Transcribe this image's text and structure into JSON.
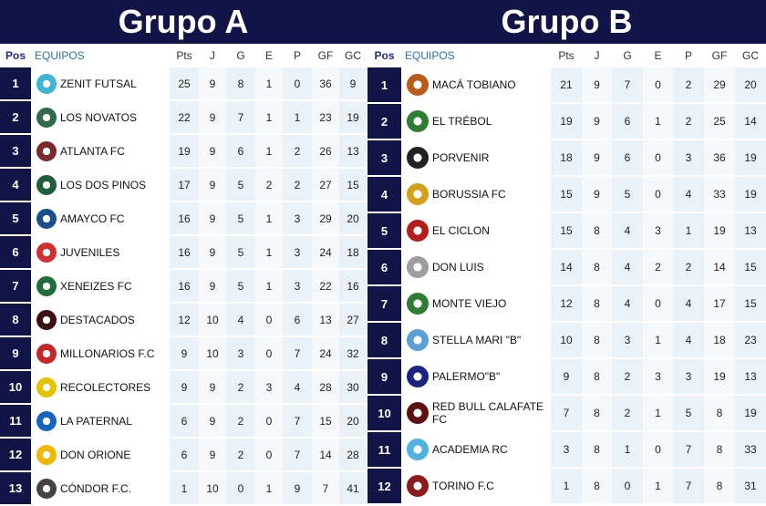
{
  "group_a": {
    "title": "Grupo A",
    "headers": {
      "pos": "Pos",
      "team": "EQUIPOS",
      "pts": "Pts",
      "j": "J",
      "g": "G",
      "e": "E",
      "p": "P",
      "gf": "GF",
      "gc": "GC"
    },
    "rows": [
      {
        "pos": "1",
        "team": "ZENIT FUTSAL",
        "pts": "25",
        "j": "9",
        "g": "8",
        "e": "1",
        "p": "0",
        "gf": "36",
        "gc": "9",
        "color": "#3fb5d6"
      },
      {
        "pos": "2",
        "team": "LOS NOVATOS",
        "pts": "22",
        "j": "9",
        "g": "7",
        "e": "1",
        "p": "1",
        "gf": "23",
        "gc": "19",
        "color": "#2f6b4a"
      },
      {
        "pos": "3",
        "team": "ATLANTA FC",
        "pts": "19",
        "j": "9",
        "g": "6",
        "e": "1",
        "p": "2",
        "gf": "26",
        "gc": "13",
        "color": "#7a2b2b"
      },
      {
        "pos": "4",
        "team": "LOS DOS PINOS",
        "pts": "17",
        "j": "9",
        "g": "5",
        "e": "2",
        "p": "2",
        "gf": "27",
        "gc": "15",
        "color": "#1f5f3a"
      },
      {
        "pos": "5",
        "team": "AMAYCO FC",
        "pts": "16",
        "j": "9",
        "g": "5",
        "e": "1",
        "p": "3",
        "gf": "29",
        "gc": "20",
        "color": "#1b4f8c"
      },
      {
        "pos": "6",
        "team": "JUVENILES",
        "pts": "16",
        "j": "9",
        "g": "5",
        "e": "1",
        "p": "3",
        "gf": "24",
        "gc": "18",
        "color": "#d32f2f"
      },
      {
        "pos": "7",
        "team": "XENEIZES FC",
        "pts": "16",
        "j": "9",
        "g": "5",
        "e": "1",
        "p": "3",
        "gf": "22",
        "gc": "16",
        "color": "#1e6d3a"
      },
      {
        "pos": "8",
        "team": "DESTACADOS",
        "pts": "12",
        "j": "10",
        "g": "4",
        "e": "0",
        "p": "6",
        "gf": "13",
        "gc": "27",
        "color": "#3a1010"
      },
      {
        "pos": "9",
        "team": "MILLONARIOS F.C",
        "pts": "9",
        "j": "10",
        "g": "3",
        "e": "0",
        "p": "7",
        "gf": "24",
        "gc": "32",
        "color": "#c62828"
      },
      {
        "pos": "10",
        "team": "RECOLECTORES",
        "pts": "9",
        "j": "9",
        "g": "2",
        "e": "3",
        "p": "4",
        "gf": "28",
        "gc": "30",
        "color": "#e6c200"
      },
      {
        "pos": "11",
        "team": "LA PATERNAL",
        "pts": "6",
        "j": "9",
        "g": "2",
        "e": "0",
        "p": "7",
        "gf": "15",
        "gc": "20",
        "color": "#1565c0"
      },
      {
        "pos": "12",
        "team": "DON ORIONE",
        "pts": "6",
        "j": "9",
        "g": "2",
        "e": "0",
        "p": "7",
        "gf": "14",
        "gc": "28",
        "color": "#f2b705"
      },
      {
        "pos": "13",
        "team": "CÓNDOR F.C.",
        "pts": "1",
        "j": "10",
        "g": "0",
        "e": "1",
        "p": "9",
        "gf": "7",
        "gc": "41",
        "color": "#444444"
      }
    ]
  },
  "group_b": {
    "title": "Grupo B",
    "headers": {
      "pos": "Pos",
      "team": "EQUIPOS",
      "pts": "Pts",
      "j": "J",
      "g": "G",
      "e": "E",
      "p": "P",
      "gf": "GF",
      "gc": "GC"
    },
    "rows": [
      {
        "pos": "1",
        "team": "MACÁ TOBIANO",
        "pts": "21",
        "j": "9",
        "g": "7",
        "e": "0",
        "p": "2",
        "gf": "29",
        "gc": "20",
        "color": "#b85c1a"
      },
      {
        "pos": "2",
        "team": "EL TRÉBOL",
        "pts": "19",
        "j": "9",
        "g": "6",
        "e": "1",
        "p": "2",
        "gf": "25",
        "gc": "14",
        "color": "#2e7d32"
      },
      {
        "pos": "3",
        "team": "PORVENIR",
        "pts": "18",
        "j": "9",
        "g": "6",
        "e": "0",
        "p": "3",
        "gf": "36",
        "gc": "19",
        "color": "#222222"
      },
      {
        "pos": "4",
        "team": "BORUSSIA FC",
        "pts": "15",
        "j": "9",
        "g": "5",
        "e": "0",
        "p": "4",
        "gf": "33",
        "gc": "19",
        "color": "#d4a017"
      },
      {
        "pos": "5",
        "team": "EL CICLON",
        "pts": "15",
        "j": "8",
        "g": "4",
        "e": "3",
        "p": "1",
        "gf": "19",
        "gc": "13",
        "color": "#b71c1c"
      },
      {
        "pos": "6",
        "team": "DON LUIS",
        "pts": "14",
        "j": "8",
        "g": "4",
        "e": "2",
        "p": "2",
        "gf": "14",
        "gc": "15",
        "color": "#9e9e9e"
      },
      {
        "pos": "7",
        "team": "MONTE VIEJO",
        "pts": "12",
        "j": "8",
        "g": "4",
        "e": "0",
        "p": "4",
        "gf": "17",
        "gc": "15",
        "color": "#2e7d32"
      },
      {
        "pos": "8",
        "team": "STELLA MARI \"B\"",
        "pts": "10",
        "j": "8",
        "g": "3",
        "e": "1",
        "p": "4",
        "gf": "18",
        "gc": "23",
        "color": "#5aa0d6"
      },
      {
        "pos": "9",
        "team": "PALERMO\"B\"",
        "pts": "9",
        "j": "8",
        "g": "2",
        "e": "3",
        "p": "3",
        "gf": "19",
        "gc": "13",
        "color": "#1a237e"
      },
      {
        "pos": "10",
        "team": "RED BULL CALAFATE FC",
        "pts": "7",
        "j": "8",
        "g": "2",
        "e": "1",
        "p": "5",
        "gf": "8",
        "gc": "19",
        "color": "#5d1010"
      },
      {
        "pos": "11",
        "team": "ACADEMIA RC",
        "pts": "3",
        "j": "8",
        "g": "1",
        "e": "0",
        "p": "7",
        "gf": "8",
        "gc": "33",
        "color": "#4fb3e0"
      },
      {
        "pos": "12",
        "team": "TORINO F.C",
        "pts": "1",
        "j": "8",
        "g": "0",
        "e": "1",
        "p": "7",
        "gf": "8",
        "gc": "31",
        "color": "#8e1b1b"
      }
    ]
  }
}
